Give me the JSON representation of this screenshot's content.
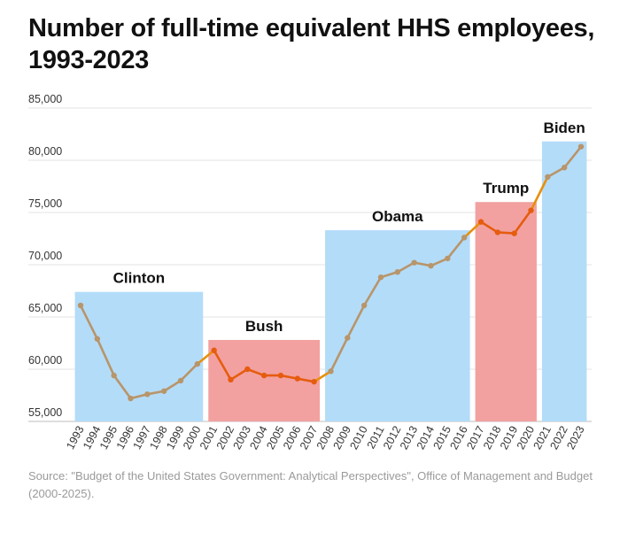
{
  "title": "Number of full-time equivalent HHS employees, 1993-2023",
  "source": "Source: \"Budget of the United States Government: Analytical Perspectives\",  Office of Management and Budget (2000-2025).",
  "colors": {
    "dem_band": "#b3dcf9",
    "rep_band": "#f2a1a0",
    "dem_line": "#b8956a",
    "rep_line": "#e65c0f",
    "transition_line": "#e8900d",
    "grid": "#e3e3e3"
  },
  "chart_data": {
    "type": "line",
    "title": "Number of full-time equivalent HHS employees, 1993-2023",
    "xlabel": "",
    "ylabel": "",
    "ylim": [
      55000,
      85000
    ],
    "yticks": [
      55000,
      60000,
      65000,
      70000,
      75000,
      80000,
      85000
    ],
    "ytick_labels": [
      "55,000",
      "60,000",
      "65,000",
      "70,000",
      "75,000",
      "80,000",
      "85,000"
    ],
    "categories": [
      "1993",
      "1994",
      "1995",
      "1996",
      "1997",
      "1998",
      "1999",
      "2000",
      "2001",
      "2002",
      "2003",
      "2004",
      "2005",
      "2006",
      "2007",
      "2008",
      "2009",
      "2010",
      "2011",
      "2012",
      "2013",
      "2014",
      "2015",
      "2016",
      "2017",
      "2018",
      "2019",
      "2020",
      "2021",
      "2022",
      "2023"
    ],
    "values": [
      66100,
      62900,
      59400,
      57200,
      57600,
      57900,
      58900,
      60500,
      61800,
      59000,
      60000,
      59400,
      59400,
      59100,
      58800,
      59800,
      63000,
      66100,
      68800,
      69300,
      70200,
      69900,
      70600,
      72600,
      74100,
      73100,
      73000,
      75200,
      78400,
      79300,
      81300
    ],
    "presidencies": [
      {
        "name": "Clinton",
        "start": "1993",
        "end": "2000",
        "party": "dem",
        "top": 67400
      },
      {
        "name": "Bush",
        "start": "2001",
        "end": "2007",
        "party": "rep",
        "top": 62800
      },
      {
        "name": "Obama",
        "start": "2008",
        "end": "2016",
        "party": "dem",
        "top": 73300
      },
      {
        "name": "Trump",
        "start": "2017",
        "end": "2020",
        "party": "rep",
        "top": 76000
      },
      {
        "name": "Biden",
        "start": "2021",
        "end": "2023",
        "party": "dem",
        "top": 81800
      }
    ],
    "point_parties": [
      "dem",
      "dem",
      "dem",
      "dem",
      "dem",
      "dem",
      "dem",
      "dem",
      "rep",
      "rep",
      "rep",
      "rep",
      "rep",
      "rep",
      "rep",
      "dem",
      "dem",
      "dem",
      "dem",
      "dem",
      "dem",
      "dem",
      "dem",
      "dem",
      "rep",
      "rep",
      "rep",
      "rep",
      "dem",
      "dem",
      "dem"
    ],
    "grid": true
  }
}
